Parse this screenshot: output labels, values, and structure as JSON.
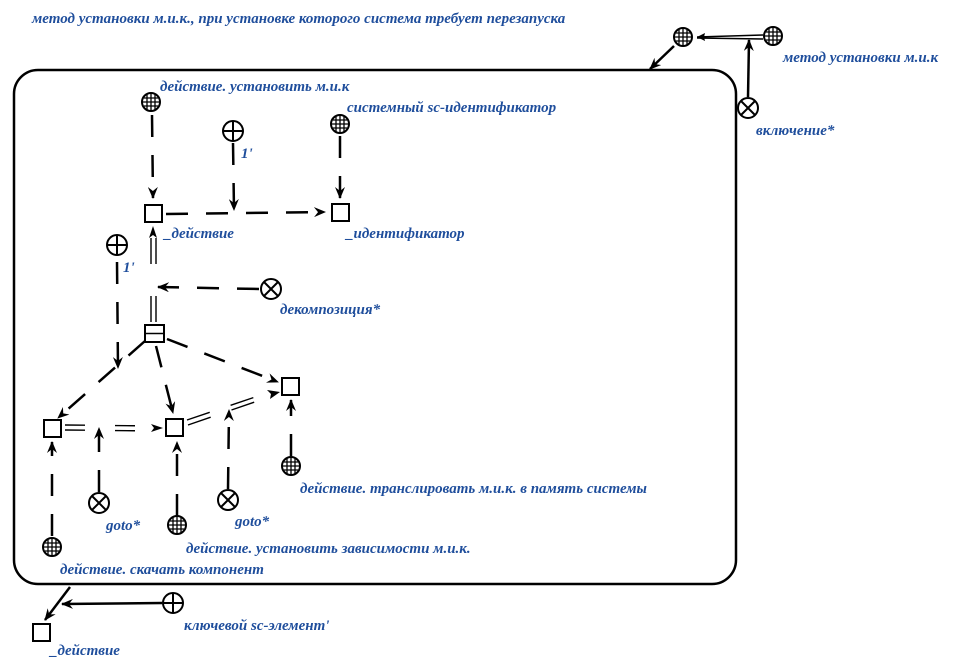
{
  "labels": {
    "top_class": "метод установки м.и.к., при установке которого система требует перезапуска",
    "right_class": "метод установки м.и.к",
    "inclusion": "включение*",
    "action_install": "действие. установить м.и.к",
    "sys_id": "системный sc-идентификатор",
    "role_1a": "1'",
    "role_1b": "1'",
    "var_action": "_действие",
    "var_identifier": "_идентификатор",
    "decomposition": "декомпозиция*",
    "action_translate": "действие. транслировать м.и.к. в память системы",
    "goto_1": "goto*",
    "goto_2": "goto*",
    "action_deps": "действие. установить зависимости м.и.к.",
    "action_download": "действие. скачать компонент",
    "key_element": "ключевой sc-элемент'",
    "var_action_bottom": "_действие"
  },
  "colors": {
    "label": "#1f4e9c",
    "stroke": "#000000"
  }
}
